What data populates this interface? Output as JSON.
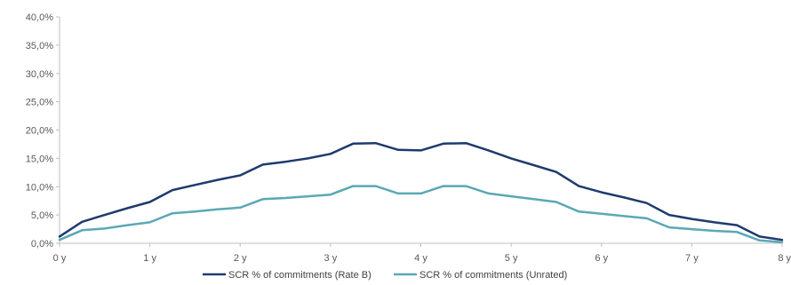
{
  "chart_data": {
    "type": "line",
    "title": "",
    "xlabel": "",
    "ylabel": "",
    "x_ticks": [
      "0 y",
      "1 y",
      "2 y",
      "3 y",
      "4 y",
      "5 y",
      "6 y",
      "7 y",
      "8 y"
    ],
    "xlim": [
      0,
      8
    ],
    "y_ticks": [
      "0,0%",
      "5,0%",
      "10,0%",
      "15,0%",
      "20,0%",
      "25,0%",
      "30,0%",
      "35,0%",
      "40,0%"
    ],
    "ylim": [
      0,
      40
    ],
    "y_unit": "%",
    "grid": false,
    "legend_position": "bottom",
    "series": [
      {
        "name": "SCR % of commitments (Rate B)",
        "color": "#1f3a6e",
        "x": [
          0.0,
          0.25,
          0.5,
          0.75,
          1.0,
          1.25,
          1.5,
          1.75,
          2.0,
          2.25,
          2.5,
          2.75,
          3.0,
          3.25,
          3.5,
          3.75,
          4.0,
          4.25,
          4.5,
          4.75,
          5.0,
          5.25,
          5.5,
          5.75,
          6.0,
          6.25,
          6.5,
          6.75,
          7.0,
          7.25,
          7.5,
          7.75,
          8.0
        ],
        "values": [
          1.2,
          3.8,
          5.0,
          6.2,
          7.3,
          9.4,
          10.3,
          11.2,
          12.0,
          13.9,
          14.4,
          15.0,
          15.8,
          17.6,
          17.7,
          16.5,
          16.4,
          17.6,
          17.7,
          16.4,
          15.0,
          13.8,
          12.6,
          10.1,
          9.0,
          8.1,
          7.1,
          5.0,
          4.3,
          3.7,
          3.2,
          1.2,
          0.6
        ]
      },
      {
        "name": "SCR % of commitments (Unrated)",
        "color": "#5ba8b5",
        "x": [
          0.0,
          0.25,
          0.5,
          0.75,
          1.0,
          1.25,
          1.5,
          1.75,
          2.0,
          2.25,
          2.5,
          2.75,
          3.0,
          3.25,
          3.5,
          3.75,
          4.0,
          4.25,
          4.5,
          4.75,
          5.0,
          5.25,
          5.5,
          5.75,
          6.0,
          6.25,
          6.5,
          6.75,
          7.0,
          7.25,
          7.5,
          7.75,
          8.0
        ],
        "values": [
          0.6,
          2.3,
          2.6,
          3.2,
          3.7,
          5.3,
          5.6,
          6.0,
          6.3,
          7.8,
          8.0,
          8.3,
          8.6,
          10.1,
          10.1,
          8.8,
          8.8,
          10.1,
          10.1,
          8.8,
          8.3,
          7.8,
          7.3,
          5.6,
          5.2,
          4.8,
          4.4,
          2.8,
          2.5,
          2.2,
          2.0,
          0.5,
          0.2
        ]
      }
    ]
  }
}
